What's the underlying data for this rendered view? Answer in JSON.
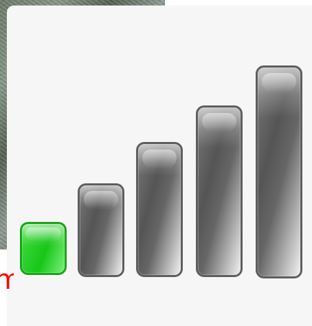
{
  "background": {
    "partial_label_text": "m",
    "colors": {
      "panel": "#f6f6f6",
      "text_accent": "#ff0000",
      "active_bar": "#18c618",
      "inactive_bar": "#777777"
    }
  },
  "signal_meter": {
    "bars_total": 5,
    "bars_active": 1,
    "bars": [
      {
        "state": "active"
      },
      {
        "state": "inactive"
      },
      {
        "state": "inactive"
      },
      {
        "state": "inactive"
      },
      {
        "state": "inactive"
      }
    ]
  }
}
